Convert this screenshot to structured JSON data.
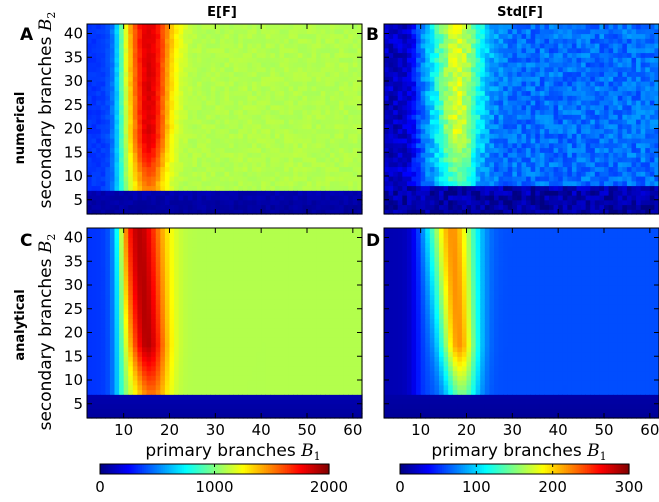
{
  "figure": {
    "col_titles": [
      "E[F]",
      "Std[F]"
    ],
    "row_labels": [
      "numerical",
      "analytical"
    ],
    "panel_letters": [
      "A",
      "B",
      "C",
      "D"
    ],
    "xlabel": "primary branches",
    "xlabel_symbol": "B",
    "xlabel_sub": "1",
    "ylabel": "secondary branches",
    "ylabel_symbol": "B",
    "ylabel_sub": "2"
  },
  "chart_data": [
    {
      "type": "heatmap",
      "panel": "A",
      "title": "E[F]",
      "row": "numerical",
      "colormap": "jet",
      "xlim": [
        2,
        62
      ],
      "ylim": [
        2,
        42
      ],
      "xticks": [
        10,
        20,
        30,
        40,
        50,
        60
      ],
      "yticks": [
        5,
        10,
        15,
        20,
        25,
        30,
        35,
        40
      ],
      "vmin": 0,
      "vmax": 2000,
      "colorbar_ticks": [
        0,
        1000,
        2000
      ],
      "model": {
        "threshold_B2": 7.5,
        "background": 1100,
        "low_B1_value": 350,
        "low_B2_base": 100,
        "peak_B1": 15.5,
        "peak_width": 3.6,
        "peak_amplitude": 720,
        "shift_per_B2": 0.0,
        "noise": 25
      }
    },
    {
      "type": "heatmap",
      "panel": "B",
      "title": "Std[F]",
      "row": "numerical",
      "colormap": "jet",
      "xlim": [
        2,
        62
      ],
      "ylim": [
        2,
        42
      ],
      "xticks": [
        10,
        20,
        30,
        40,
        50,
        60
      ],
      "yticks": [
        5,
        10,
        15,
        20,
        25,
        30,
        35,
        40
      ],
      "vmin": 0,
      "vmax": 300,
      "colorbar_ticks": [
        0,
        100,
        200,
        300
      ],
      "model": {
        "threshold_B2": 7.8,
        "background": 70,
        "low_B1_value": 20,
        "low_B2_base": 15,
        "peak_B1": 18,
        "peak_width": 4.2,
        "peak_amplitude": 105,
        "shift_per_B2": 0.0,
        "noise": 14
      }
    },
    {
      "type": "heatmap",
      "panel": "C",
      "title": "E[F]",
      "row": "analytical",
      "colormap": "jet",
      "xlim": [
        2,
        62
      ],
      "ylim": [
        2,
        42
      ],
      "xticks": [
        10,
        20,
        30,
        40,
        50,
        60
      ],
      "yticks": [
        5,
        10,
        15,
        20,
        25,
        30,
        35,
        40
      ],
      "vmin": 0,
      "vmax": 2000,
      "colorbar_ticks": [
        0,
        1000,
        2000
      ],
      "model": {
        "threshold_B2": 7.5,
        "background": 1100,
        "low_B1_value": 350,
        "low_B2_base": 100,
        "peak_B1": 16,
        "peak_width": 3.8,
        "peak_amplitude": 800,
        "shift_per_B2": -0.08,
        "noise": 0
      }
    },
    {
      "type": "heatmap",
      "panel": "D",
      "title": "Std[F]",
      "row": "analytical",
      "colormap": "jet",
      "xlim": [
        2,
        62
      ],
      "ylim": [
        2,
        42
      ],
      "xticks": [
        10,
        20,
        30,
        40,
        50,
        60
      ],
      "yticks": [
        5,
        10,
        15,
        20,
        25,
        30,
        35,
        40
      ],
      "vmin": 0,
      "vmax": 300,
      "colorbar_ticks": [
        0,
        100,
        200,
        300
      ],
      "model": {
        "threshold_B2": 7.3,
        "background": 60,
        "low_B1_value": 15,
        "low_B2_base": 12,
        "peak_B1": 19,
        "peak_width": 3.6,
        "peak_amplitude": 160,
        "shift_per_B2": -0.06,
        "noise": 0
      }
    }
  ]
}
